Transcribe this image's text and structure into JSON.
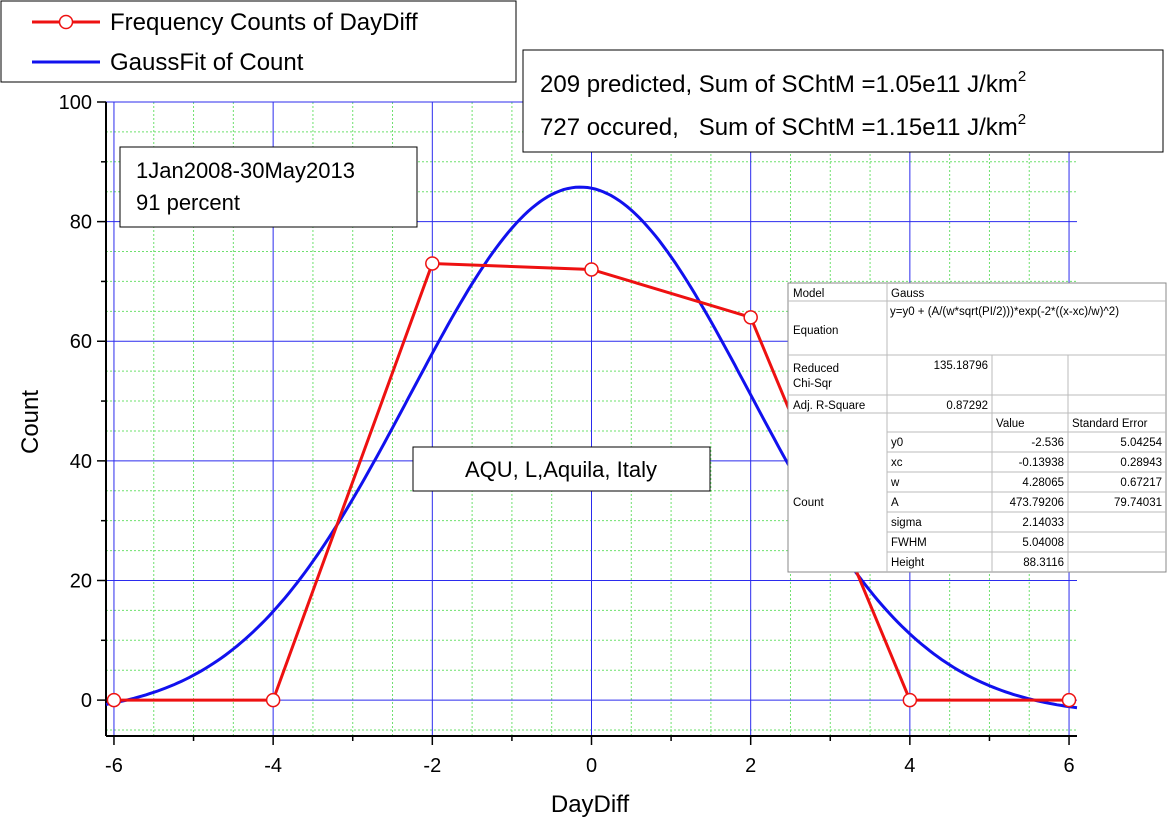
{
  "chart_data": {
    "type": "line",
    "xlabel": "DayDiff",
    "ylabel": "Count",
    "xlim": [
      -6.1,
      6.1
    ],
    "ylim": [
      -6,
      100
    ],
    "x_ticks": [
      "-6",
      "-4",
      "-2",
      "0",
      "2",
      "4",
      "6"
    ],
    "y_ticks": [
      "0",
      "20",
      "40",
      "60",
      "80",
      "100"
    ],
    "grid": true,
    "legend_position": "top-left",
    "series": [
      {
        "name": "Frequency Counts of DayDiff",
        "style": "line-circle-markers",
        "color": "#ee1111",
        "x": [
          -6,
          -4,
          -2,
          0,
          2,
          4,
          6
        ],
        "y": [
          0,
          0,
          73,
          72,
          64,
          0,
          0
        ]
      },
      {
        "name": "GaussFit of Count",
        "style": "line",
        "color": "#1111ee",
        "model": {
          "y0": -2.536,
          "xc": -0.13938,
          "w": 4.28065,
          "A": 473.79206
        }
      }
    ],
    "annotations": {
      "date_range": "1Jan2008-30May2013",
      "percent": "91 percent",
      "predicted_line": "209 predicted, Sum of SChtM =1.05e11 J/km",
      "occurred_line": "727 occured,   Sum of SChtM =1.15e11 J/km",
      "unit_superscript": "2",
      "station": "AQU, L,Aquila, Italy"
    },
    "fit_table": {
      "model_label": "Model",
      "model_value": "Gauss",
      "equation_label": "Equation",
      "equation_value": "y=y0 + (A/(w*sqrt(PI/2)))*exp(-2*((x-xc)/w)^2)",
      "chisq_label_1": "Reduced",
      "chisq_label_2": "Chi-Sqr",
      "chisq_value": "135.18796",
      "r2_label": "Adj. R-Square",
      "r2_value": "0.87292",
      "value_header": "Value",
      "error_header": "Standard Error",
      "group_label": "Count",
      "params": [
        {
          "name": "y0",
          "value": "-2.536",
          "error": "5.04254"
        },
        {
          "name": "xc",
          "value": "-0.13938",
          "error": "0.28943"
        },
        {
          "name": "w",
          "value": "4.28065",
          "error": "0.67217"
        },
        {
          "name": "A",
          "value": "473.79206",
          "error": "79.74031"
        },
        {
          "name": "sigma",
          "value": "2.14033",
          "error": ""
        },
        {
          "name": "FWHM",
          "value": "5.04008",
          "error": ""
        },
        {
          "name": "Height",
          "value": "88.3116",
          "error": ""
        }
      ]
    }
  }
}
